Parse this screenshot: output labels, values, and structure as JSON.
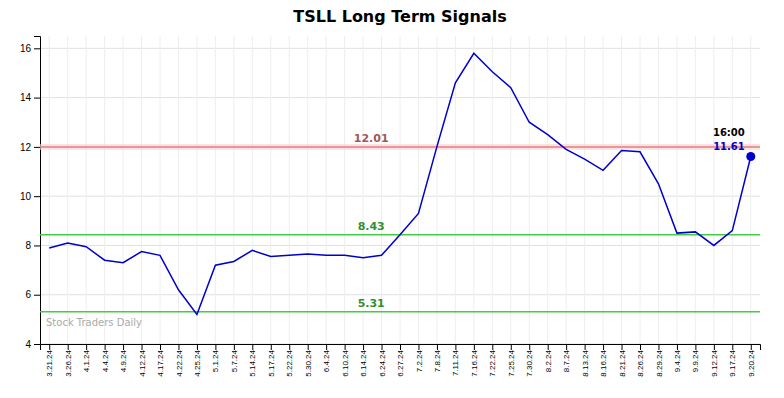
{
  "chart_data": {
    "type": "line",
    "title": "TSLL Long Term Signals",
    "categories": [
      "3.21.24",
      "3.26.24",
      "4.1.24",
      "4.4.24",
      "4.9.24",
      "4.12.24",
      "4.17.24",
      "4.22.24",
      "4.25.24",
      "5.1.24",
      "5.7.24",
      "5.14.24",
      "5.17.24",
      "5.22.24",
      "5.30.24",
      "6.4.24",
      "6.10.24",
      "6.14.24",
      "6.24.24",
      "6.27.24",
      "7.2.24",
      "7.8.24",
      "7.11.24",
      "7.16.24",
      "7.22.24",
      "7.25.24",
      "7.30.24",
      "8.2.24",
      "8.7.24",
      "8.13.24",
      "8.16.24",
      "8.21.24",
      "8.26.24",
      "8.29.24",
      "9.4.24",
      "9.9.24",
      "9.12.24",
      "9.17.24",
      "9.20.24"
    ],
    "values": [
      7.9,
      8.1,
      7.95,
      7.4,
      7.3,
      7.75,
      7.6,
      6.2,
      5.2,
      7.2,
      7.35,
      7.8,
      7.55,
      7.6,
      7.65,
      7.6,
      7.6,
      7.5,
      7.6,
      8.43,
      9.3,
      12.01,
      14.6,
      15.8,
      15.05,
      14.4,
      13.0,
      12.5,
      11.9,
      11.5,
      11.05,
      11.85,
      11.8,
      10.5,
      8.5,
      8.55,
      8.0,
      8.6,
      11.61
    ],
    "color": "#0000cc",
    "reference_lines": [
      {
        "value": 12.0,
        "color": "#e08080",
        "label": "12.01"
      },
      {
        "value": 8.43,
        "color": "#44cc44",
        "label": "8.43"
      },
      {
        "value": 5.31,
        "color": "#44cc44",
        "label": "5.31"
      }
    ],
    "reference_band": {
      "values": [
        11.88,
        12.12
      ],
      "color": "#ffd0d0"
    },
    "end_marker": {
      "time_label": "16:00",
      "value_label": "11.61"
    },
    "watermark": "Stock Traders Daily",
    "ylim": [
      4,
      16.5
    ],
    "yticks": [
      4,
      6,
      8,
      10,
      12,
      14,
      16
    ],
    "grid": true
  }
}
